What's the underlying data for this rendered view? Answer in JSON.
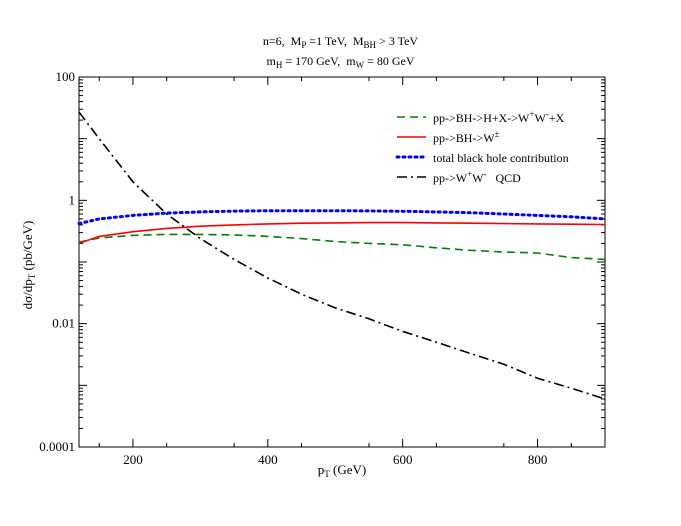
{
  "chart_data": {
    "type": "line",
    "title_line1": {
      "n": "n=6,",
      "mp_label": "M",
      "mp_sub": "P",
      "mp_value": "=1 TeV,",
      "mbh_label": "M",
      "mbh_sub": "BH",
      "mbh_value": "> 3 TeV"
    },
    "title_line2": {
      "mh_label": "m",
      "mh_sub": "H",
      "mh_value": "= 170 GeV,",
      "mw_label": "m",
      "mw_sub": "W",
      "mw_value": "= 80 GeV"
    },
    "xlabel": {
      "main": "p",
      "sub": "T",
      "unit": "(GeV)"
    },
    "ylabel": {
      "main": "dσ/dp",
      "sub": "T",
      "unit": "(pb/GeV)"
    },
    "xlim": [
      120,
      900
    ],
    "ylim": [
      0.0001,
      100
    ],
    "yscale": "log",
    "x_ticks": [
      200,
      400,
      600,
      800
    ],
    "x_tick_labels": [
      "200",
      "400",
      "600",
      "800"
    ],
    "y_ticks": [
      0.0001,
      0.01,
      1,
      100
    ],
    "y_tick_labels": [
      "0.0001",
      "0.01",
      "1",
      "100"
    ],
    "legend_position": "top-right",
    "series": [
      {
        "name": "pp->BH->H+X->W+W-+X",
        "legend": {
          "a": "pp->BH->H+X->W",
          "s1": "+",
          "b": "W",
          "s2": "-",
          "c": "+X"
        },
        "color": "#008000",
        "dash": "8,5",
        "x": [
          120,
          150,
          200,
          250,
          300,
          350,
          400,
          450,
          500,
          550,
          600,
          650,
          700,
          750,
          800,
          850,
          900
        ],
        "y": [
          0.21,
          0.245,
          0.27,
          0.28,
          0.28,
          0.275,
          0.26,
          0.24,
          0.215,
          0.2,
          0.19,
          0.17,
          0.155,
          0.145,
          0.14,
          0.118,
          0.11
        ]
      },
      {
        "name": "pp->BH->W±",
        "legend": {
          "a": "pp->BH->W",
          "s1": "±"
        },
        "color": "#ff0000",
        "dash": "",
        "x": [
          120,
          150,
          200,
          250,
          300,
          350,
          400,
          450,
          500,
          550,
          600,
          650,
          700,
          750,
          800,
          850,
          900
        ],
        "y": [
          0.2,
          0.26,
          0.31,
          0.35,
          0.38,
          0.4,
          0.415,
          0.425,
          0.43,
          0.435,
          0.435,
          0.43,
          0.425,
          0.42,
          0.415,
          0.41,
          0.405
        ]
      },
      {
        "name": "total black hole contribution",
        "legend": {
          "a": "total black hole contribution"
        },
        "color": "#0000ff",
        "dash": "2,4",
        "x": [
          120,
          150,
          200,
          250,
          300,
          350,
          400,
          450,
          500,
          550,
          600,
          650,
          700,
          750,
          800,
          850,
          900
        ],
        "y": [
          0.42,
          0.5,
          0.57,
          0.62,
          0.65,
          0.67,
          0.68,
          0.68,
          0.68,
          0.675,
          0.665,
          0.65,
          0.63,
          0.6,
          0.57,
          0.54,
          0.5
        ]
      },
      {
        "name": "pp->W+W- QCD",
        "legend": {
          "a": "pp->W",
          "s1": "+",
          "b": "W",
          "s2": "-",
          "c": "   QCD"
        },
        "color": "#000000",
        "dash": "10,4,2,4",
        "x": [
          120,
          150,
          200,
          250,
          300,
          350,
          400,
          450,
          500,
          550,
          600,
          650,
          700,
          750,
          800,
          850,
          900
        ],
        "y": [
          27,
          10,
          2.0,
          0.6,
          0.24,
          0.11,
          0.055,
          0.03,
          0.018,
          0.012,
          0.0075,
          0.005,
          0.0033,
          0.0022,
          0.0013,
          0.0009,
          0.0006
        ]
      }
    ]
  }
}
